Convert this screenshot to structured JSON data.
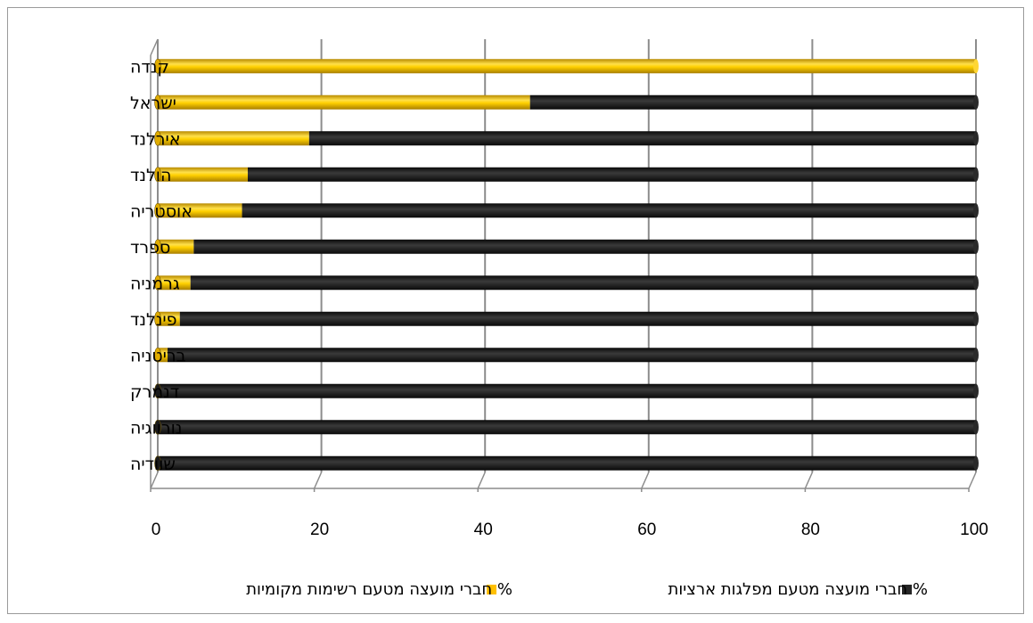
{
  "chart_data": {
    "type": "bar",
    "orientation": "horizontal",
    "stacked": true,
    "style": "3d-cylinder",
    "categories": [
      "קנדה",
      "ישראל",
      "אירלנד",
      "הולנד",
      "אוסטריה",
      "ספרד",
      "גרמניה",
      "פינלנד",
      "בריטניה",
      "דנמרק",
      "נורווגיה",
      "שוודיה"
    ],
    "series": [
      {
        "name": "% חברי מועצה מטעם רשימות מקומיות",
        "color": "#FFC000",
        "values": [
          100,
          45.5,
          18.5,
          11,
          10.3,
          4.4,
          4,
          2.7,
          1.2,
          0,
          0,
          0
        ]
      },
      {
        "name": "% חברי מועצה מטעם מפלגות ארציות",
        "color": "#262626",
        "values": [
          0,
          54.5,
          81.5,
          89,
          89.7,
          95.6,
          96,
          97.3,
          98.8,
          100,
          100,
          100
        ]
      }
    ],
    "xlim": [
      0,
      100
    ],
    "xticks": [
      "0",
      "20",
      "40",
      "60",
      "80",
      "100"
    ],
    "grid": true,
    "legend_position": "bottom",
    "title": "",
    "xlabel": "",
    "ylabel": ""
  }
}
